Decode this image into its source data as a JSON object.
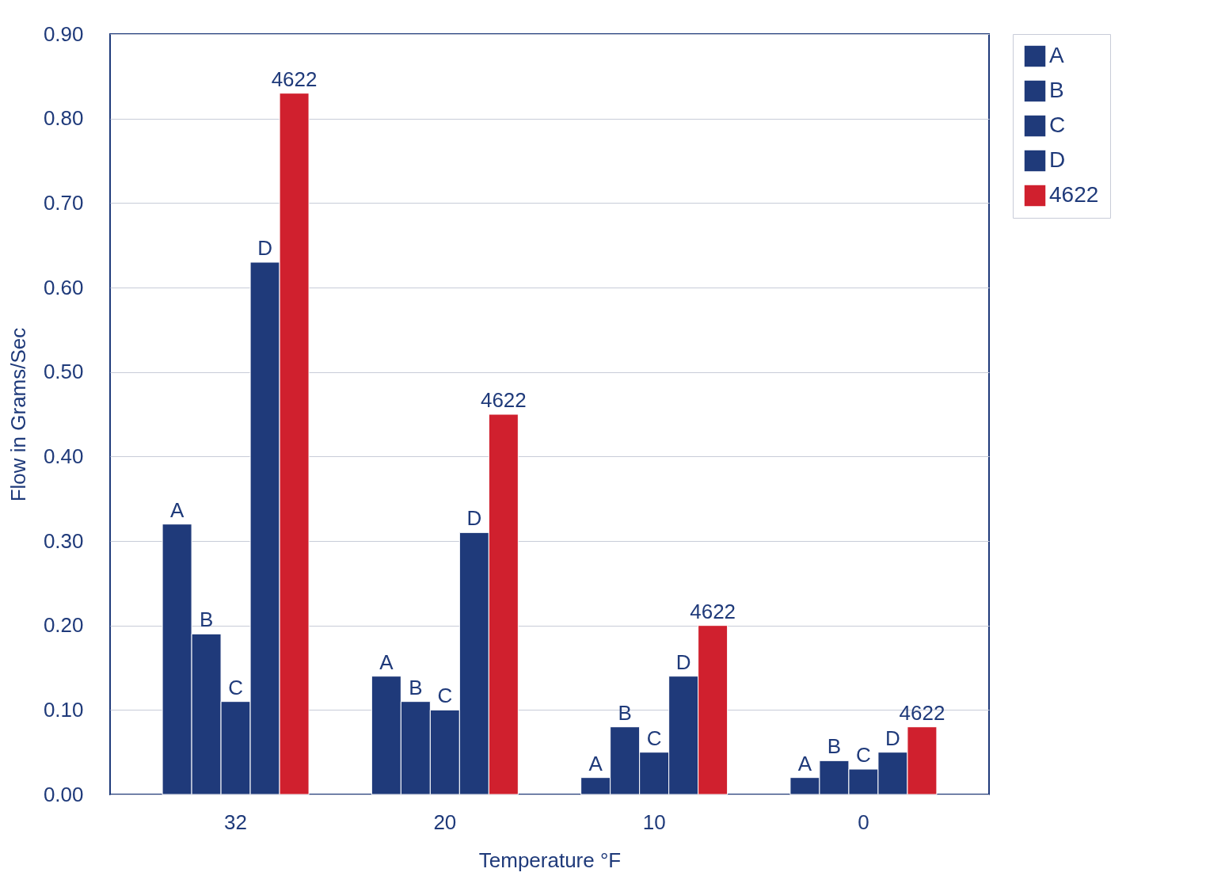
{
  "chart_data": {
    "type": "bar",
    "xlabel": "Temperature °F",
    "ylabel": "Flow in Grams/Sec",
    "categories": [
      "32",
      "20",
      "10",
      "0"
    ],
    "series": [
      {
        "name": "A",
        "color": "#1f3a7a",
        "values": [
          0.32,
          0.14,
          0.02,
          0.02
        ]
      },
      {
        "name": "B",
        "color": "#1f3a7a",
        "values": [
          0.19,
          0.11,
          0.08,
          0.04
        ]
      },
      {
        "name": "C",
        "color": "#1f3a7a",
        "values": [
          0.11,
          0.1,
          0.05,
          0.03
        ]
      },
      {
        "name": "D",
        "color": "#1f3a7a",
        "values": [
          0.63,
          0.31,
          0.14,
          0.05
        ]
      },
      {
        "name": "4622",
        "color": "#d0202e",
        "values": [
          0.83,
          0.45,
          0.2,
          0.08
        ]
      }
    ],
    "ylim": [
      0,
      0.9
    ],
    "yticks": [
      {
        "value": 0,
        "label": "0.00"
      },
      {
        "value": 0.1,
        "label": "0.10"
      },
      {
        "value": 0.2,
        "label": "0.20"
      },
      {
        "value": 0.3,
        "label": "0.30"
      },
      {
        "value": 0.4,
        "label": "0.40"
      },
      {
        "value": 0.5,
        "label": "0.50"
      },
      {
        "value": 0.6,
        "label": "0.60"
      },
      {
        "value": 0.7,
        "label": "0.70"
      },
      {
        "value": 0.8,
        "label": "0.80"
      },
      {
        "value": 0.9,
        "label": "0.90"
      }
    ],
    "grid": "y",
    "legend": "right"
  }
}
